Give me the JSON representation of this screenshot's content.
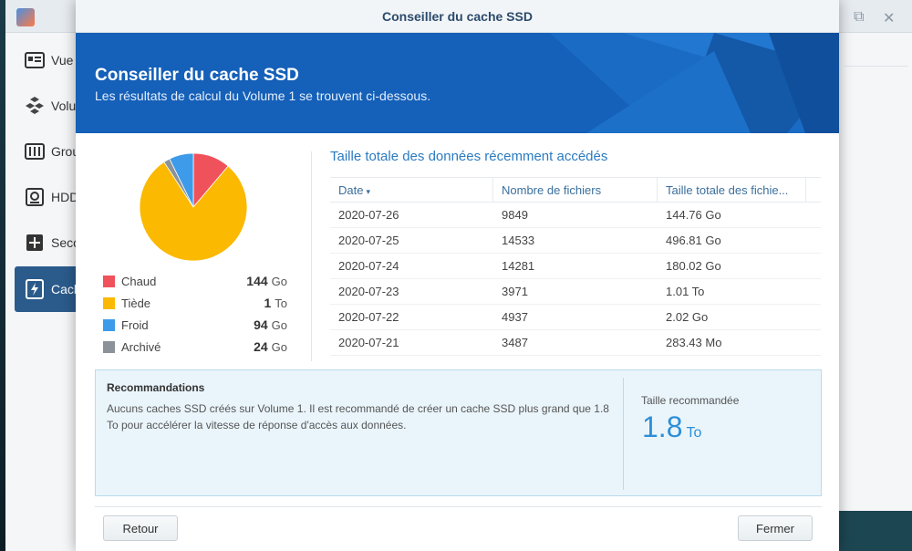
{
  "parent": {
    "nav": [
      {
        "label": "Vue",
        "icon": "overview-icon"
      },
      {
        "label": "Volu",
        "icon": "volume-icon"
      },
      {
        "label": "Grou",
        "icon": "storage-pool-icon"
      },
      {
        "label": "HDD",
        "icon": "hdd-icon"
      },
      {
        "label": "Seco",
        "icon": "hot-spare-icon"
      },
      {
        "label": "Cach",
        "icon": "ssd-cache-icon"
      }
    ],
    "controls": {
      "maximize": "⧉",
      "close": "✕"
    }
  },
  "modal": {
    "title": "Conseiller du cache SSD",
    "banner": {
      "title": "Conseiller du cache SSD",
      "subtitle": "Les résultats de calcul du Volume 1 se trouvent ci-dessous."
    },
    "legend": [
      {
        "label": "Chaud",
        "value": "144",
        "unit": "Go",
        "color": "#f0525c"
      },
      {
        "label": "Tiède",
        "value": "1",
        "unit": "To",
        "color": "#fbb901"
      },
      {
        "label": "Froid",
        "value": "94",
        "unit": "Go",
        "color": "#3d9be9"
      },
      {
        "label": "Archivé",
        "value": "24",
        "unit": "Go",
        "color": "#8c9299"
      }
    ],
    "table": {
      "title": "Taille totale des données récemment accédés",
      "headers": [
        "Date",
        "Nombre de fichiers",
        "Taille totale des fichie..."
      ],
      "sort_arrow": "▾",
      "rows": [
        [
          "2020-07-26",
          "9849",
          "144.76 Go"
        ],
        [
          "2020-07-25",
          "14533",
          "496.81 Go"
        ],
        [
          "2020-07-24",
          "14281",
          "180.02 Go"
        ],
        [
          "2020-07-23",
          "3971",
          "1.01 To"
        ],
        [
          "2020-07-22",
          "4937",
          "2.02 Go"
        ],
        [
          "2020-07-21",
          "3487",
          "283.43 Mo"
        ]
      ]
    },
    "recommendation": {
      "title": "Recommandations",
      "text": "Aucuns caches SSD créés sur Volume 1. Il est recommandé de créer un cache SSD plus grand que 1.8 To pour accélérer la vitesse de réponse d'accès aux données.",
      "size_label": "Taille recommandée",
      "size_value": "1.8",
      "size_unit": "To"
    },
    "buttons": {
      "back": "Retour",
      "close": "Fermer"
    }
  },
  "chart_data": {
    "type": "pie",
    "categories": [
      "Chaud",
      "Tiède",
      "Froid",
      "Archivé"
    ],
    "values": [
      144,
      1024,
      94,
      24
    ],
    "colors": [
      "#f0525c",
      "#fbb901",
      "#3d9be9",
      "#8c9299"
    ]
  }
}
